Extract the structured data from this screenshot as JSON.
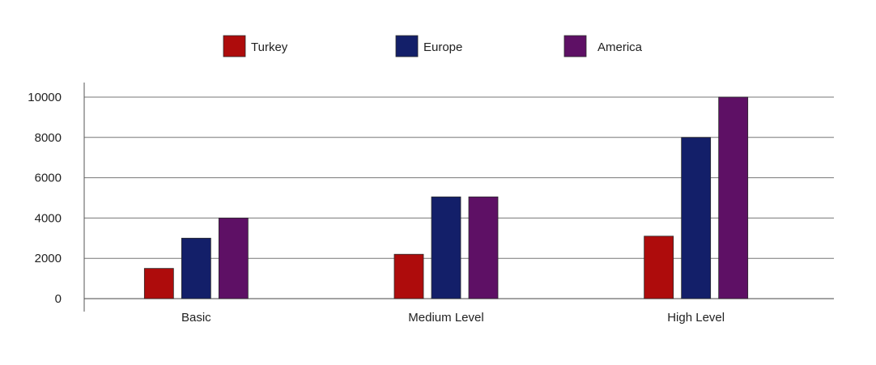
{
  "chart_data": {
    "type": "bar",
    "categories": [
      "Basic",
      "Medium Level",
      "High Level"
    ],
    "series": [
      {
        "name": "Turkey",
        "color": "#ae0c0c",
        "values": [
          1500,
          2200,
          3100
        ]
      },
      {
        "name": "Europe",
        "color": "#131f69",
        "values": [
          3000,
          5050,
          8000
        ]
      },
      {
        "name": "America",
        "color": "#5e1065",
        "values": [
          4000,
          5050,
          10000
        ]
      }
    ],
    "yticks": [
      "0",
      "2000",
      "4000",
      "6000",
      "8000",
      "10000"
    ],
    "ylim": [
      0,
      10000
    ],
    "grid": true,
    "legend": "top-center"
  }
}
